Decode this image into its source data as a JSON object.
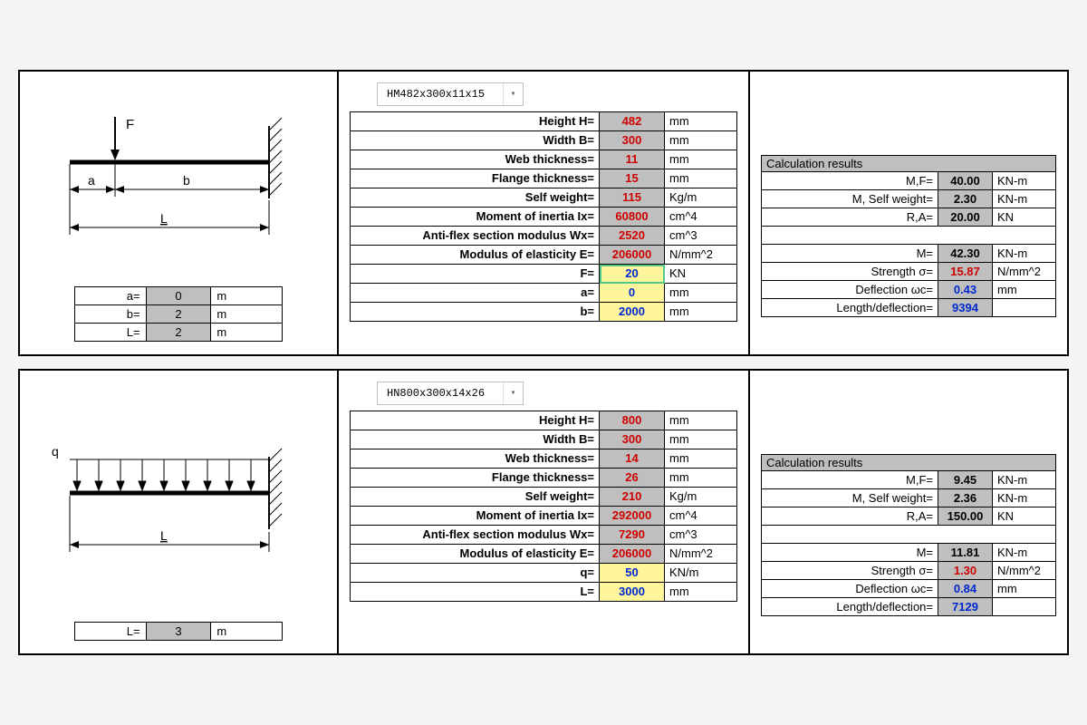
{
  "panel1": {
    "diagram": {
      "type": "cantilever-point-load",
      "force_label": "F",
      "dim_a": "a",
      "dim_b": "b",
      "dim_L": "L"
    },
    "params": [
      {
        "label": "a=",
        "value": "0",
        "unit": "m"
      },
      {
        "label": "b=",
        "value": "2",
        "unit": "m"
      },
      {
        "label": "L=",
        "value": "2",
        "unit": "m"
      }
    ],
    "dropdown": "HM482x300x11x15",
    "props": [
      {
        "label": "Height H=",
        "value": "482",
        "unit": "mm",
        "cls": "red grey-bg"
      },
      {
        "label": "Width B=",
        "value": "300",
        "unit": "mm",
        "cls": "red grey-bg"
      },
      {
        "label": "Web thickness=",
        "value": "11",
        "unit": "mm",
        "cls": "red grey-bg"
      },
      {
        "label": "Flange thickness=",
        "value": "15",
        "unit": "mm",
        "cls": "red grey-bg"
      },
      {
        "label": "Self weight=",
        "value": "115",
        "unit": "Kg/m",
        "cls": "red grey-bg"
      },
      {
        "label": "Moment of inertia Ix=",
        "value": "60800",
        "unit": "cm^4",
        "cls": "red grey-bg"
      },
      {
        "label": "Anti-flex section modulus Wx=",
        "value": "2520",
        "unit": "cm^3",
        "cls": "red grey-bg"
      },
      {
        "label": "Modulus of elasticity E=",
        "value": "206000",
        "unit": "N/mm^2",
        "cls": "red grey-bg"
      },
      {
        "label": "F=",
        "value": "20",
        "unit": "KN",
        "cls": "blue yellow-bg green-outline"
      },
      {
        "label": "a=",
        "value": "0",
        "unit": "mm",
        "cls": "blue yellow-bg"
      },
      {
        "label": "b=",
        "value": "2000",
        "unit": "mm",
        "cls": "blue yellow-bg"
      }
    ],
    "results_title": "Calculation results",
    "results": [
      {
        "label": "M,F=",
        "value": "40.00",
        "unit": "KN-m",
        "cls": ""
      },
      {
        "label": "M,  Self weight=",
        "value": "2.30",
        "unit": "KN-m",
        "cls": ""
      },
      {
        "label": "R,A=",
        "value": "20.00",
        "unit": "KN",
        "cls": ""
      },
      {
        "spacer": true
      },
      {
        "label": "M=",
        "value": "42.30",
        "unit": "KN-m",
        "cls": ""
      },
      {
        "label": "Strength σ=",
        "value": "15.87",
        "unit": "N/mm^2",
        "cls": "red"
      },
      {
        "label": "Deflection ωc=",
        "value": "0.43",
        "unit": "mm",
        "cls": "blue"
      },
      {
        "label": "Length/deflection=",
        "value": "9394",
        "unit": "",
        "cls": "blue"
      }
    ]
  },
  "panel2": {
    "diagram": {
      "type": "cantilever-distributed-load",
      "load_label": "q",
      "dim_L": "L"
    },
    "params": [
      {
        "label": "L=",
        "value": "3",
        "unit": "m"
      }
    ],
    "dropdown": "HN800x300x14x26",
    "props": [
      {
        "label": "Height H=",
        "value": "800",
        "unit": "mm",
        "cls": "red grey-bg"
      },
      {
        "label": "Width B=",
        "value": "300",
        "unit": "mm",
        "cls": "red grey-bg"
      },
      {
        "label": "Web thickness=",
        "value": "14",
        "unit": "mm",
        "cls": "red grey-bg"
      },
      {
        "label": "Flange thickness=",
        "value": "26",
        "unit": "mm",
        "cls": "red grey-bg"
      },
      {
        "label": "Self weight=",
        "value": "210",
        "unit": "Kg/m",
        "cls": "red grey-bg"
      },
      {
        "label": "Moment of inertia Ix=",
        "value": "292000",
        "unit": "cm^4",
        "cls": "red grey-bg"
      },
      {
        "label": "Anti-flex section modulus Wx=",
        "value": "7290",
        "unit": "cm^3",
        "cls": "red grey-bg"
      },
      {
        "label": "Modulus of elasticity E=",
        "value": "206000",
        "unit": "N/mm^2",
        "cls": "red grey-bg"
      },
      {
        "label": "q=",
        "value": "50",
        "unit": "KN/m",
        "cls": "blue yellow-bg"
      },
      {
        "label": "L=",
        "value": "3000",
        "unit": "mm",
        "cls": "blue yellow-bg"
      }
    ],
    "results_title": "Calculation results",
    "results": [
      {
        "label": "M,F=",
        "value": "9.45",
        "unit": "KN-m",
        "cls": ""
      },
      {
        "label": "M, Self weight=",
        "value": "2.36",
        "unit": "KN-m",
        "cls": ""
      },
      {
        "label": "R,A=",
        "value": "150.00",
        "unit": "KN",
        "cls": ""
      },
      {
        "spacer": true
      },
      {
        "label": "M=",
        "value": "11.81",
        "unit": "KN-m",
        "cls": ""
      },
      {
        "label": "Strength σ=",
        "value": "1.30",
        "unit": "N/mm^2",
        "cls": "red"
      },
      {
        "label": "Deflection ωc=",
        "value": "0.84",
        "unit": "mm",
        "cls": "blue"
      },
      {
        "label": "Length/deflection=",
        "value": "7129",
        "unit": "",
        "cls": "blue"
      }
    ]
  }
}
